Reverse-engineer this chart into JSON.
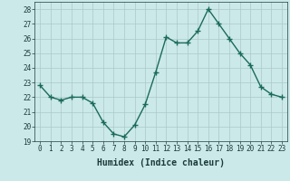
{
  "x": [
    0,
    1,
    2,
    3,
    4,
    5,
    6,
    7,
    8,
    9,
    10,
    11,
    12,
    13,
    14,
    15,
    16,
    17,
    18,
    19,
    20,
    21,
    22,
    23
  ],
  "y": [
    22.8,
    22.0,
    21.8,
    22.0,
    22.0,
    21.6,
    20.3,
    19.5,
    19.3,
    20.1,
    21.5,
    23.7,
    26.1,
    25.7,
    25.7,
    26.5,
    28.0,
    27.0,
    26.0,
    25.0,
    24.2,
    22.7,
    22.2,
    22.0
  ],
  "line_color": "#1a6b5a",
  "marker": "+",
  "marker_size": 4,
  "bg_color": "#cce9e9",
  "grid_color": "#aac8c8",
  "tick_color": "#1a3a3a",
  "xlabel": "Humidex (Indice chaleur)",
  "ylim": [
    19,
    28.5
  ],
  "yticks": [
    19,
    20,
    21,
    22,
    23,
    24,
    25,
    26,
    27,
    28
  ],
  "xticks": [
    0,
    1,
    2,
    3,
    4,
    5,
    6,
    7,
    8,
    9,
    10,
    11,
    12,
    13,
    14,
    15,
    16,
    17,
    18,
    19,
    20,
    21,
    22,
    23
  ],
  "xlabel_fontsize": 7,
  "tick_fontsize": 5.5,
  "line_width": 1.0
}
